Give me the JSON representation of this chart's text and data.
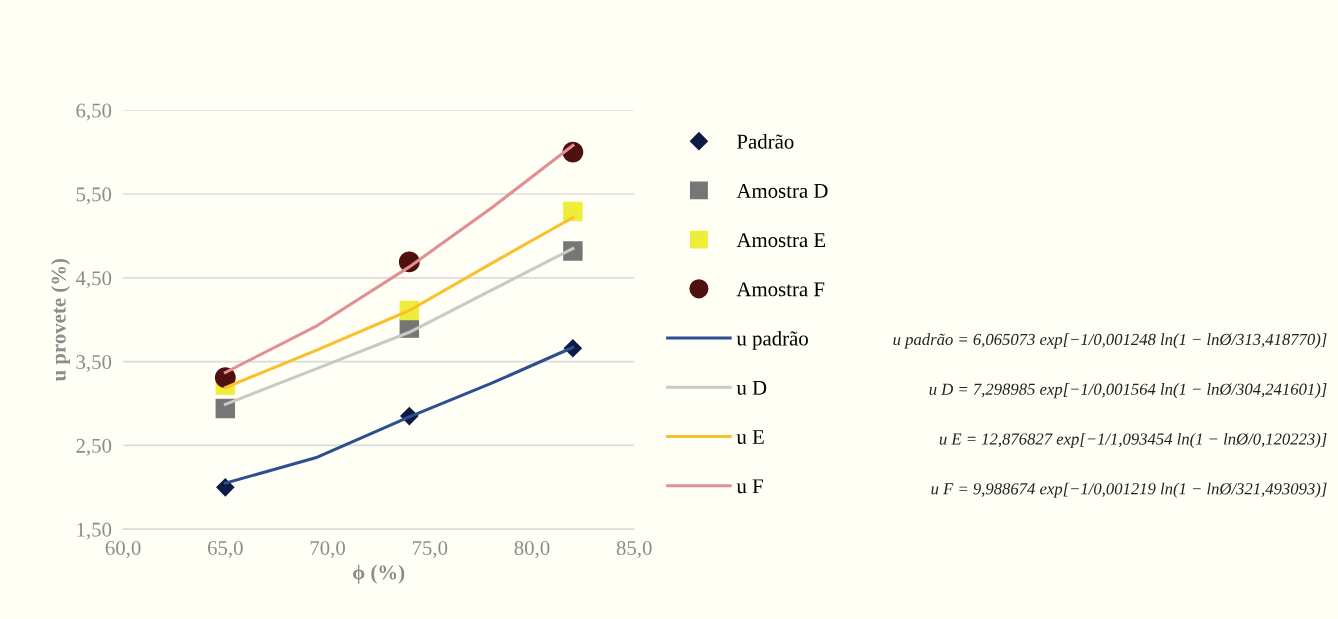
{
  "chart_data": {
    "type": "scatter",
    "xlabel": "ϕ (%)",
    "ylabel": "u provete (%)",
    "xlim": [
      60,
      85
    ],
    "xticks": [
      {
        "value": 60,
        "label": "60,0"
      },
      {
        "value": 65,
        "label": "65,0"
      },
      {
        "value": 70,
        "label": "70,0"
      },
      {
        "value": 75,
        "label": "75,0"
      },
      {
        "value": 80,
        "label": "80,0"
      },
      {
        "value": 85,
        "label": "85,0"
      }
    ],
    "ylim": [
      1.5,
      6.5
    ],
    "yticks": [
      {
        "value": 1.5,
        "label": "1,50"
      },
      {
        "value": 2.5,
        "label": "2,50"
      },
      {
        "value": 3.5,
        "label": "3,50"
      },
      {
        "value": 4.5,
        "label": "4,50"
      },
      {
        "value": 5.5,
        "label": "5,50"
      },
      {
        "value": 6.5,
        "label": "6,50"
      }
    ],
    "grid": "y",
    "legend": "right",
    "series": [
      {
        "name": "Padrão",
        "marker": "diamond",
        "color": "#0d1b45",
        "x": [
          65,
          74,
          82
        ],
        "values": [
          2.0,
          2.85,
          3.66
        ]
      },
      {
        "name": "Amostra D",
        "marker": "square",
        "color": "#767676",
        "x": [
          65,
          74,
          82
        ],
        "values": [
          2.94,
          3.9,
          4.82
        ]
      },
      {
        "name": "Amostra E",
        "marker": "square",
        "color": "#eeee3a",
        "x": [
          65,
          74,
          82
        ],
        "values": [
          3.22,
          4.11,
          5.29
        ]
      },
      {
        "name": "Amostra F",
        "marker": "circle",
        "color": "#4f1010",
        "x": [
          65,
          74,
          82
        ],
        "values": [
          3.31,
          4.69,
          6.0
        ]
      },
      {
        "name": "u padrão",
        "type": "line",
        "marker": "none",
        "line_style": "solid",
        "color": "#2e4f8f",
        "x": [
          65,
          69.5,
          74,
          78,
          82
        ],
        "values": [
          2.05,
          2.36,
          2.84,
          3.24,
          3.67
        ]
      },
      {
        "name": "u D",
        "type": "line",
        "marker": "none",
        "line_style": "solid",
        "color": "#c9c9c9",
        "x": [
          65,
          69.5,
          74,
          78,
          82
        ],
        "values": [
          2.99,
          3.42,
          3.85,
          4.35,
          4.85
        ]
      },
      {
        "name": "u E",
        "type": "line",
        "marker": "none",
        "line_style": "solid",
        "color": "#f9c02c",
        "x": [
          65,
          69.5,
          74,
          78,
          82
        ],
        "values": [
          3.19,
          3.64,
          4.11,
          4.67,
          5.22
        ]
      },
      {
        "name": "u F",
        "type": "line",
        "marker": "none",
        "line_style": "solid",
        "color": "#e09090",
        "x": [
          65,
          69.5,
          74,
          78,
          82
        ],
        "values": [
          3.37,
          3.93,
          4.63,
          5.33,
          6.08
        ]
      }
    ],
    "annotations": [
      "u padrão = 6,065073 exp[−1/0,001248 ln(1 − lnØ/313,418770)]",
      "u D = 7,298985 exp[−1/0,001564 ln(1 − lnØ/304,241601)]",
      "u E = 12,876827 exp[−1/1,093454 ln(1 − lnØ/0,120223)]",
      "u F = 9,988674 exp[−1/0,001219 ln(1 − lnØ/321,493093)]"
    ]
  }
}
